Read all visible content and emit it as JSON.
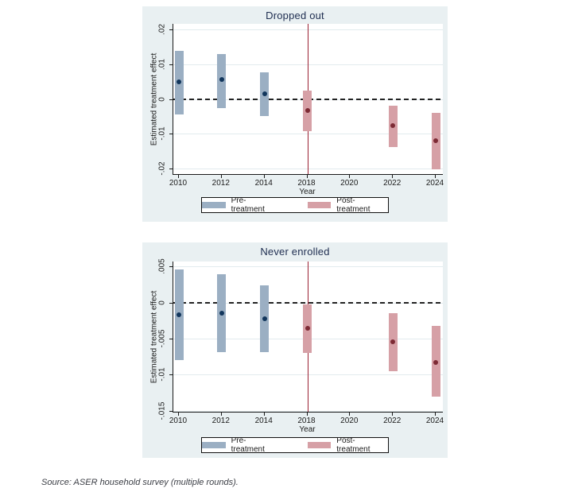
{
  "source_note": "Source: ASER household survey (multiple rounds).",
  "colors": {
    "panel_background": "#e9f0f2",
    "title_color": "#1e2d50",
    "pre_treatment_fill": "#9bafc3",
    "pre_treatment_dot": "#12365c",
    "post_treatment_fill": "#d6a0a6",
    "post_treatment_dot": "#7d2b35",
    "treatment_line": "#9b2335"
  },
  "chart_data": [
    {
      "type": "ci-bar",
      "title": "Dropped out",
      "xlabel": "Year",
      "ylabel": "Estimated treatment effect",
      "categories": [
        2010,
        2012,
        2014,
        2018,
        2020,
        2022,
        2024
      ],
      "ylim": [
        -0.0216,
        0.0216
      ],
      "yticks": [
        0.02,
        0.01,
        0,
        -0.01,
        -0.02
      ],
      "ytick_labels": [
        ".02",
        ".01",
        "0",
        "-.01",
        "-.02"
      ],
      "grid": true,
      "zero_dashed_line": true,
      "treatment_line_x": 2018,
      "treatment_line_color": "#9b2335",
      "legend_position": "below",
      "series": [
        {
          "name": "Pre-treatment",
          "fill": "#9bafc3",
          "dot": "#12365c",
          "points": [
            {
              "x": 2010,
              "est": 0.005,
              "lo": -0.0045,
              "hi": 0.0139
            },
            {
              "x": 2012,
              "est": 0.0055,
              "lo": -0.0026,
              "hi": 0.0129
            },
            {
              "x": 2014,
              "est": 0.0015,
              "lo": -0.005,
              "hi": 0.0076
            }
          ]
        },
        {
          "name": "Post-treatment",
          "fill": "#d6a0a6",
          "dot": "#7d2b35",
          "points": [
            {
              "x": 2018,
              "est": -0.0034,
              "lo": -0.0093,
              "hi": 0.0023
            },
            {
              "x": 2022,
              "est": -0.0077,
              "lo": -0.0139,
              "hi": -0.002
            },
            {
              "x": 2024,
              "est": -0.012,
              "lo": -0.0202,
              "hi": -0.0041
            }
          ]
        }
      ]
    },
    {
      "type": "ci-bar",
      "title": "Never enrolled",
      "xlabel": "Year",
      "ylabel": "Estimated treatment effect",
      "categories": [
        2010,
        2012,
        2014,
        2018,
        2020,
        2022,
        2024
      ],
      "ylim": [
        -0.01516,
        0.0057
      ],
      "yticks": [
        0.005,
        0,
        -0.005,
        -0.01,
        -0.015
      ],
      "ytick_labels": [
        ".005",
        "0",
        "-.005",
        "-.01",
        "-.015"
      ],
      "grid": true,
      "zero_dashed_line": true,
      "treatment_line_x": 2018,
      "treatment_line_color": "#9b2335",
      "legend_position": "below",
      "series": [
        {
          "name": "Pre-treatment",
          "fill": "#9bafc3",
          "dot": "#12365c",
          "points": [
            {
              "x": 2010,
              "est": -0.0017,
              "lo": -0.008,
              "hi": 0.0046
            },
            {
              "x": 2012,
              "est": -0.0015,
              "lo": -0.0069,
              "hi": 0.0039
            },
            {
              "x": 2014,
              "est": -0.0022,
              "lo": -0.0069,
              "hi": 0.0024
            }
          ]
        },
        {
          "name": "Post-treatment",
          "fill": "#d6a0a6",
          "dot": "#7d2b35",
          "points": [
            {
              "x": 2018,
              "est": -0.0036,
              "lo": -0.007,
              "hi": -0.0003
            },
            {
              "x": 2022,
              "est": -0.0054,
              "lo": -0.0095,
              "hi": -0.0015
            },
            {
              "x": 2024,
              "est": -0.0083,
              "lo": -0.0131,
              "hi": -0.0032
            }
          ]
        }
      ]
    }
  ]
}
